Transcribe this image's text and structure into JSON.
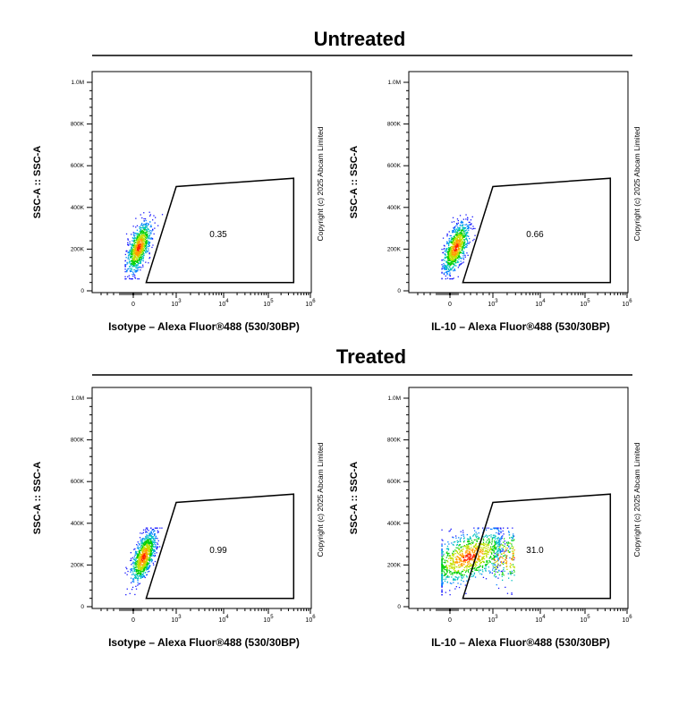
{
  "chart_data": [
    {
      "type": "scatter",
      "group": "Untreated",
      "xlabel": "Isotype – Alexa Fluor®488 (530/30BP)",
      "ylabel": "SSC-A :: SSC-A",
      "gate_value": "0.35",
      "cluster": {
        "x_mean": 120,
        "x_sd": 140,
        "y_mean": 210000,
        "y_sd": 60000,
        "corr": 0.6,
        "count": 900
      }
    },
    {
      "type": "scatter",
      "group": "Untreated",
      "xlabel": "IL-10 – Alexa Fluor®488 (530/30BP)",
      "ylabel": "SSC-A :: SSC-A",
      "gate_value": "0.66",
      "cluster": {
        "x_mean": 130,
        "x_sd": 150,
        "y_mean": 210000,
        "y_sd": 60000,
        "corr": 0.6,
        "count": 900
      }
    },
    {
      "type": "scatter",
      "group": "Treated",
      "xlabel": "Isotype – Alexa Fluor®488 (530/30BP)",
      "ylabel": "SSC-A :: SSC-A",
      "gate_value": "0.99",
      "cluster": {
        "x_mean": 230,
        "x_sd": 140,
        "y_mean": 240000,
        "y_sd": 60000,
        "corr": 0.6,
        "count": 900
      }
    },
    {
      "type": "scatter",
      "group": "Treated",
      "xlabel": "IL-10 – Alexa Fluor®488 (530/30BP)",
      "ylabel": "SSC-A :: SSC-A",
      "gate_value": "31.0",
      "cluster": {
        "x_mean": 420,
        "x_sd": 420,
        "y_mean": 240000,
        "y_sd": 65000,
        "corr": 0.5,
        "count": 1300
      }
    }
  ],
  "groups": [
    "Untreated",
    "Treated"
  ],
  "axes": {
    "y_ticks": [
      "0",
      "200K",
      "400K",
      "600K",
      "800K",
      "1.0M"
    ],
    "y_tick_values": [
      0,
      200000,
      400000,
      600000,
      800000,
      1000000
    ],
    "x_ticks": [
      {
        "base": "0",
        "exp": ""
      },
      {
        "base": "10",
        "exp": "3"
      },
      {
        "base": "10",
        "exp": "4"
      },
      {
        "base": "10",
        "exp": "5"
      },
      {
        "base": "10",
        "exp": "6"
      }
    ],
    "x_tick_values": [
      0,
      1000,
      10000,
      100000,
      1000000
    ],
    "y_range": [
      0,
      1050000
    ]
  },
  "gate": {
    "vertices": [
      [
        300,
        40000
      ],
      [
        1000,
        500000
      ],
      [
        400000,
        540000
      ],
      [
        400000,
        40000
      ]
    ]
  },
  "copyright": "Copyright (c) 2025 Abcam Limited"
}
